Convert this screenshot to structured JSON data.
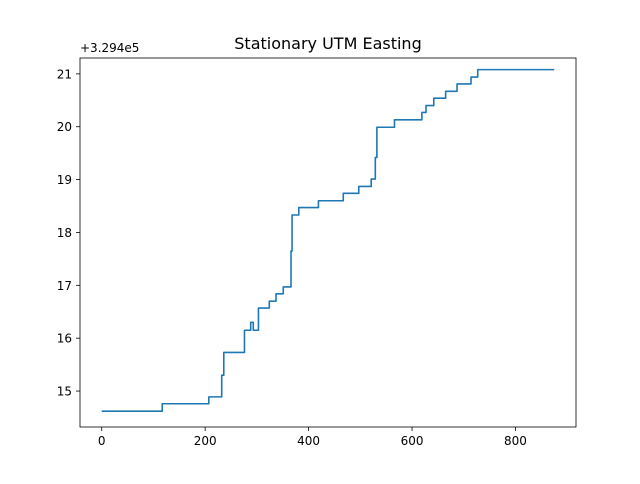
{
  "chart_data": {
    "type": "line",
    "title": "Stationary UTM Easting",
    "xlabel": "",
    "ylabel": "",
    "y_offset_text": "+3.294e5",
    "xlim": [
      -42,
      917
    ],
    "ylim": [
      14.32,
      21.3
    ],
    "x_ticks": [
      0,
      200,
      400,
      600,
      800
    ],
    "x_tick_labels": [
      "0",
      "200",
      "400",
      "600",
      "800"
    ],
    "y_ticks": [
      15,
      16,
      17,
      18,
      19,
      20,
      21
    ],
    "y_tick_labels": [
      "15",
      "16",
      "17",
      "18",
      "19",
      "20",
      "21"
    ],
    "grid": false,
    "legend": "none",
    "series": [
      {
        "color": "#1f77b4",
        "points": [
          [
            0,
            14.62
          ],
          [
            117,
            14.62
          ],
          [
            117,
            14.76
          ],
          [
            207,
            14.76
          ],
          [
            207,
            14.89
          ],
          [
            232,
            14.89
          ],
          [
            232,
            15.3
          ],
          [
            236,
            15.3
          ],
          [
            236,
            15.73
          ],
          [
            276,
            15.73
          ],
          [
            276,
            16.15
          ],
          [
            288,
            16.15
          ],
          [
            288,
            16.3
          ],
          [
            293,
            16.3
          ],
          [
            293,
            16.15
          ],
          [
            303,
            16.15
          ],
          [
            303,
            16.57
          ],
          [
            324,
            16.57
          ],
          [
            324,
            16.7
          ],
          [
            337,
            16.7
          ],
          [
            337,
            16.84
          ],
          [
            351,
            16.84
          ],
          [
            351,
            16.97
          ],
          [
            366,
            16.97
          ],
          [
            366,
            17.65
          ],
          [
            368,
            17.65
          ],
          [
            368,
            18.33
          ],
          [
            381,
            18.33
          ],
          [
            381,
            18.47
          ],
          [
            419,
            18.47
          ],
          [
            419,
            18.6
          ],
          [
            467,
            18.6
          ],
          [
            467,
            18.74
          ],
          [
            497,
            18.74
          ],
          [
            497,
            18.87
          ],
          [
            521,
            18.87
          ],
          [
            521,
            19.01
          ],
          [
            529,
            19.01
          ],
          [
            529,
            19.42
          ],
          [
            532,
            19.42
          ],
          [
            532,
            19.99
          ],
          [
            566,
            19.99
          ],
          [
            566,
            20.13
          ],
          [
            619,
            20.13
          ],
          [
            619,
            20.27
          ],
          [
            627,
            20.27
          ],
          [
            627,
            20.4
          ],
          [
            642,
            20.4
          ],
          [
            642,
            20.54
          ],
          [
            665,
            20.54
          ],
          [
            665,
            20.67
          ],
          [
            687,
            20.67
          ],
          [
            687,
            20.81
          ],
          [
            714,
            20.81
          ],
          [
            714,
            20.94
          ],
          [
            727,
            20.94
          ],
          [
            727,
            21.08
          ],
          [
            875,
            21.08
          ]
        ]
      }
    ]
  }
}
